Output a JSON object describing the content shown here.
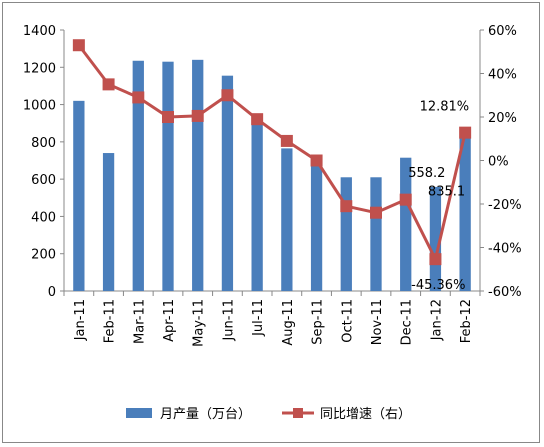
{
  "chart_data": {
    "type": "bar",
    "categories": [
      "Jan-11",
      "Feb-11",
      "Mar-11",
      "Apr-11",
      "May-11",
      "Jun-11",
      "Jul-11",
      "Aug-11",
      "Sep-11",
      "Oct-11",
      "Nov-11",
      "Dec-11",
      "Jan-12",
      "Feb-12"
    ],
    "series": [
      {
        "name": "月产量（万台）",
        "type": "bar",
        "axis": "left",
        "color": "#4a7ebb",
        "values": [
          1020,
          740,
          1235,
          1230,
          1240,
          1155,
          930,
          765,
          700,
          610,
          610,
          715,
          558.2,
          835.1
        ]
      },
      {
        "name": "同比增速（右）",
        "type": "line",
        "axis": "right",
        "color": "#c0504d",
        "values": [
          53,
          35,
          29,
          20,
          20.5,
          30,
          19,
          9,
          0,
          -21,
          -24,
          -18,
          -45.36,
          12.81
        ]
      }
    ],
    "y_left": {
      "ticks": [
        "0",
        "200",
        "400",
        "600",
        "800",
        "1000",
        "1200",
        "1400"
      ],
      "ylim": [
        0,
        1400
      ]
    },
    "y_right": {
      "ticks": [
        "-60%",
        "-40%",
        "-20%",
        "0%",
        "20%",
        "40%",
        "60%"
      ],
      "ylim": [
        -60,
        60
      ]
    },
    "annotations": [
      {
        "series": 0,
        "index": 12,
        "text": "558.2"
      },
      {
        "series": 0,
        "index": 13,
        "text": "835.1"
      },
      {
        "series": 1,
        "index": 12,
        "text": "-45.36%"
      },
      {
        "series": 1,
        "index": 13,
        "text": "12.81%"
      }
    ],
    "legend": {
      "position": "bottom",
      "labels": [
        "月产量（万台）",
        "同比增速（右）"
      ]
    },
    "grid": false
  }
}
